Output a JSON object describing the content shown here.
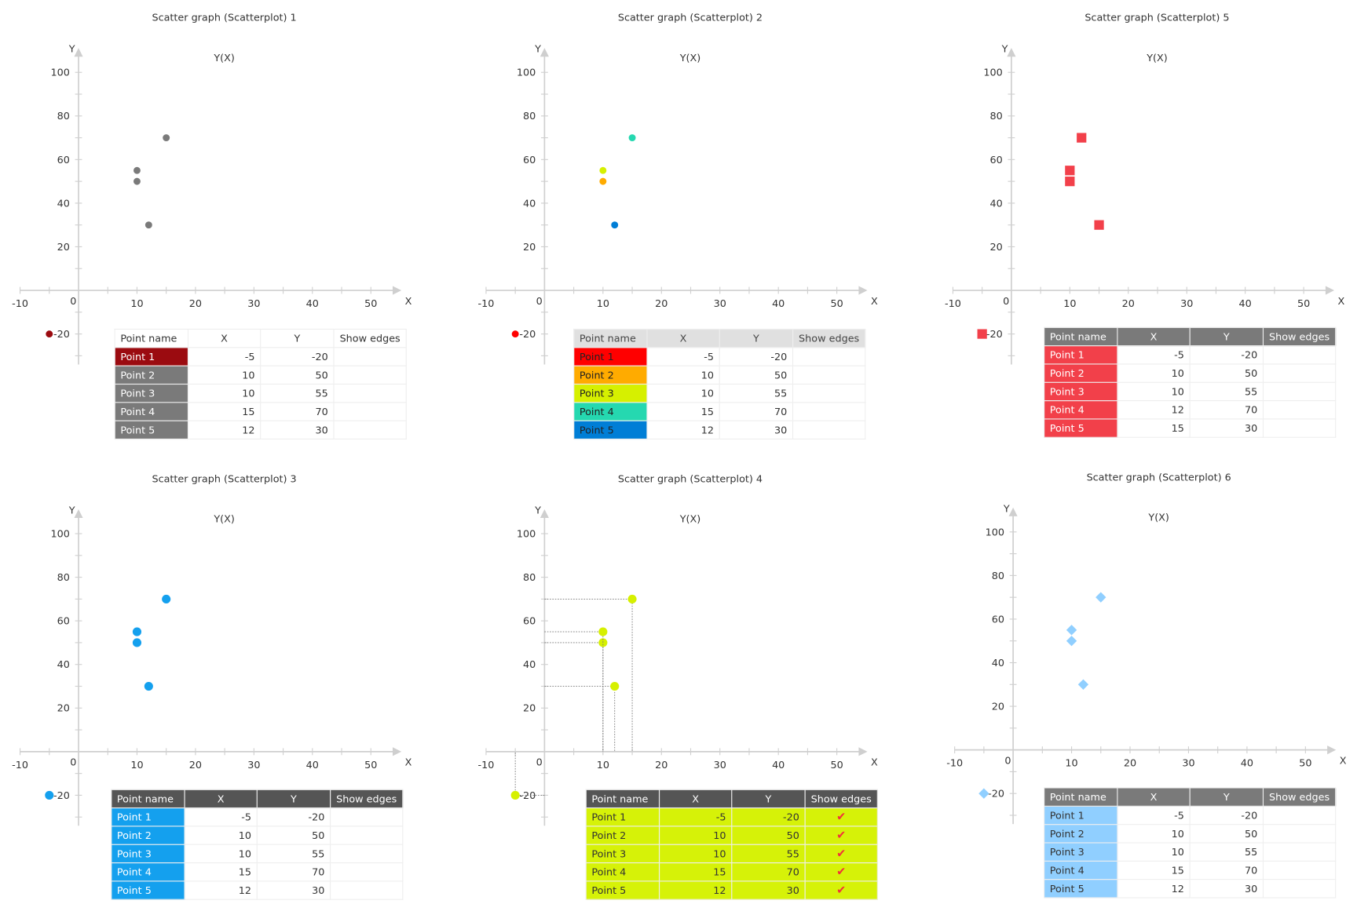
{
  "chart_data": [
    {
      "id": "c1",
      "type": "scatter",
      "title": "Scatter graph (Scatterplot) 1",
      "subtitle": "Y(X)",
      "xlabel": "X",
      "ylabel": "Y",
      "xlim": [
        -10,
        55
      ],
      "ylim": [
        -30,
        105
      ],
      "x_ticks": [
        "-10",
        "0",
        "10",
        "20",
        "30",
        "40",
        "50"
      ],
      "y_ticks": [
        "100",
        "80",
        "60",
        "40",
        "20",
        "-20"
      ],
      "points": [
        {
          "name": "Point 1",
          "x": -5,
          "y": -20,
          "color": "#9b0b10"
        },
        {
          "name": "Point 2",
          "x": 10,
          "y": 50,
          "color": "#7a7a7a"
        },
        {
          "name": "Point 3",
          "x": 10,
          "y": 55,
          "color": "#7a7a7a"
        },
        {
          "name": "Point 4",
          "x": 15,
          "y": 70,
          "color": "#7a7a7a"
        },
        {
          "name": "Point 5",
          "x": 12,
          "y": 30,
          "color": "#7a7a7a"
        }
      ],
      "table": {
        "headers": [
          "Point name",
          "X",
          "Y",
          "Show edges"
        ],
        "header_bg": "#ffffff",
        "header_fg": "#333333",
        "name_fg": "#ffffff"
      },
      "show_edges": false
    },
    {
      "id": "c2",
      "type": "scatter",
      "title": "Scatter graph (Scatterplot) 2",
      "subtitle": "Y(X)",
      "xlabel": "X",
      "ylabel": "Y",
      "xlim": [
        -10,
        55
      ],
      "ylim": [
        -30,
        105
      ],
      "x_ticks": [
        "-10",
        "0",
        "10",
        "20",
        "30",
        "40",
        "50"
      ],
      "y_ticks": [
        "100",
        "80",
        "60",
        "40",
        "20",
        "-20"
      ],
      "points": [
        {
          "name": "Point 1",
          "x": -5,
          "y": -20,
          "color": "#ff0000"
        },
        {
          "name": "Point 2",
          "x": 10,
          "y": 50,
          "color": "#ffab00"
        },
        {
          "name": "Point 3",
          "x": 10,
          "y": 55,
          "color": "#d6f000"
        },
        {
          "name": "Point 4",
          "x": 15,
          "y": 70,
          "color": "#25d8b0"
        },
        {
          "name": "Point 5",
          "x": 12,
          "y": 30,
          "color": "#007ed6"
        }
      ],
      "table": {
        "headers": [
          "Point name",
          "X",
          "Y",
          "Show edges"
        ],
        "header_bg": "#e0e0e0",
        "header_fg": "#444444",
        "name_fg": "#222222"
      },
      "show_edges": false
    },
    {
      "id": "c5",
      "type": "scatter",
      "title": "Scatter graph (Scatterplot) 5",
      "subtitle": "Y(X)",
      "xlabel": "X",
      "ylabel": "Y",
      "xlim": [
        -10,
        55
      ],
      "ylim": [
        -30,
        105
      ],
      "x_ticks": [
        "-10",
        "0",
        "10",
        "20",
        "30",
        "40",
        "50"
      ],
      "y_ticks": [
        "100",
        "80",
        "60",
        "40",
        "20",
        "-20"
      ],
      "points": [
        {
          "name": "Point 1",
          "x": -5,
          "y": -20,
          "color": "#f2404a"
        },
        {
          "name": "Point 2",
          "x": 10,
          "y": 50,
          "color": "#f2404a"
        },
        {
          "name": "Point 3",
          "x": 10,
          "y": 55,
          "color": "#f2404a"
        },
        {
          "name": "Point 4",
          "x": 12,
          "y": 70,
          "color": "#f2404a"
        },
        {
          "name": "Point 5",
          "x": 15,
          "y": 30,
          "color": "#f2404a"
        }
      ],
      "table": {
        "headers": [
          "Point name",
          "X",
          "Y",
          "Show edges"
        ],
        "header_bg": "#7a7a7a",
        "header_fg": "#ffffff",
        "name_fg": "#ffffff"
      },
      "show_edges": false
    },
    {
      "id": "c3",
      "type": "scatter",
      "title": "Scatter graph (Scatterplot) 3",
      "subtitle": "Y(X)",
      "xlabel": "X",
      "ylabel": "Y",
      "xlim": [
        -10,
        55
      ],
      "ylim": [
        -30,
        105
      ],
      "x_ticks": [
        "-10",
        "0",
        "10",
        "20",
        "30",
        "40",
        "50"
      ],
      "y_ticks": [
        "100",
        "80",
        "60",
        "40",
        "20",
        "-20"
      ],
      "points": [
        {
          "name": "Point 1",
          "x": -5,
          "y": -20,
          "color": "#14a0ee"
        },
        {
          "name": "Point 2",
          "x": 10,
          "y": 50,
          "color": "#14a0ee"
        },
        {
          "name": "Point 3",
          "x": 10,
          "y": 55,
          "color": "#14a0ee"
        },
        {
          "name": "Point 4",
          "x": 15,
          "y": 70,
          "color": "#14a0ee"
        },
        {
          "name": "Point 5",
          "x": 12,
          "y": 30,
          "color": "#14a0ee"
        }
      ],
      "table": {
        "headers": [
          "Point name",
          "X",
          "Y",
          "Show edges"
        ],
        "header_bg": "#555555",
        "header_fg": "#ffffff",
        "name_fg": "#ffffff"
      },
      "show_edges": false
    },
    {
      "id": "c4",
      "type": "scatter",
      "title": "Scatter graph (Scatterplot) 4",
      "subtitle": "Y(X)",
      "xlabel": "X",
      "ylabel": "Y",
      "xlim": [
        -10,
        55
      ],
      "ylim": [
        -30,
        105
      ],
      "x_ticks": [
        "-10",
        "0",
        "10",
        "20",
        "30",
        "40",
        "50"
      ],
      "y_ticks": [
        "100",
        "80",
        "60",
        "40",
        "20",
        "-20"
      ],
      "points": [
        {
          "name": "Point 1",
          "x": -5,
          "y": -20,
          "color": "#d6f000"
        },
        {
          "name": "Point 2",
          "x": 10,
          "y": 50,
          "color": "#d6f000"
        },
        {
          "name": "Point 3",
          "x": 10,
          "y": 55,
          "color": "#d6f000"
        },
        {
          "name": "Point 4",
          "x": 15,
          "y": 70,
          "color": "#d6f000"
        },
        {
          "name": "Point 5",
          "x": 12,
          "y": 30,
          "color": "#d6f000"
        }
      ],
      "table": {
        "headers": [
          "Point name",
          "X",
          "Y",
          "Show edges"
        ],
        "header_bg": "#555555",
        "header_fg": "#ffffff",
        "name_fg": "#333333",
        "row_bg": "#d6f208",
        "check_color": "#f2303a"
      },
      "show_edges": true
    },
    {
      "id": "c6",
      "type": "scatter",
      "title": "Scatter graph (Scatterplot) 6",
      "subtitle": "Y(X)",
      "xlabel": "X",
      "ylabel": "Y",
      "xlim": [
        -10,
        55
      ],
      "ylim": [
        -30,
        105
      ],
      "x_ticks": [
        "-10",
        "0",
        "10",
        "20",
        "30",
        "40",
        "50"
      ],
      "y_ticks": [
        "100",
        "80",
        "60",
        "40",
        "20",
        "-20"
      ],
      "points": [
        {
          "name": "Point 1",
          "x": -5,
          "y": -20,
          "color": "#90cfff"
        },
        {
          "name": "Point 2",
          "x": 10,
          "y": 50,
          "color": "#90cfff"
        },
        {
          "name": "Point 3",
          "x": 10,
          "y": 55,
          "color": "#90cfff"
        },
        {
          "name": "Point 4",
          "x": 15,
          "y": 70,
          "color": "#90cfff"
        },
        {
          "name": "Point 5",
          "x": 12,
          "y": 30,
          "color": "#90cfff"
        }
      ],
      "table": {
        "headers": [
          "Point name",
          "X",
          "Y",
          "Show edges"
        ],
        "header_bg": "#7a7a7a",
        "header_fg": "#ffffff",
        "name_fg": "#333333"
      },
      "show_edges": false
    }
  ]
}
